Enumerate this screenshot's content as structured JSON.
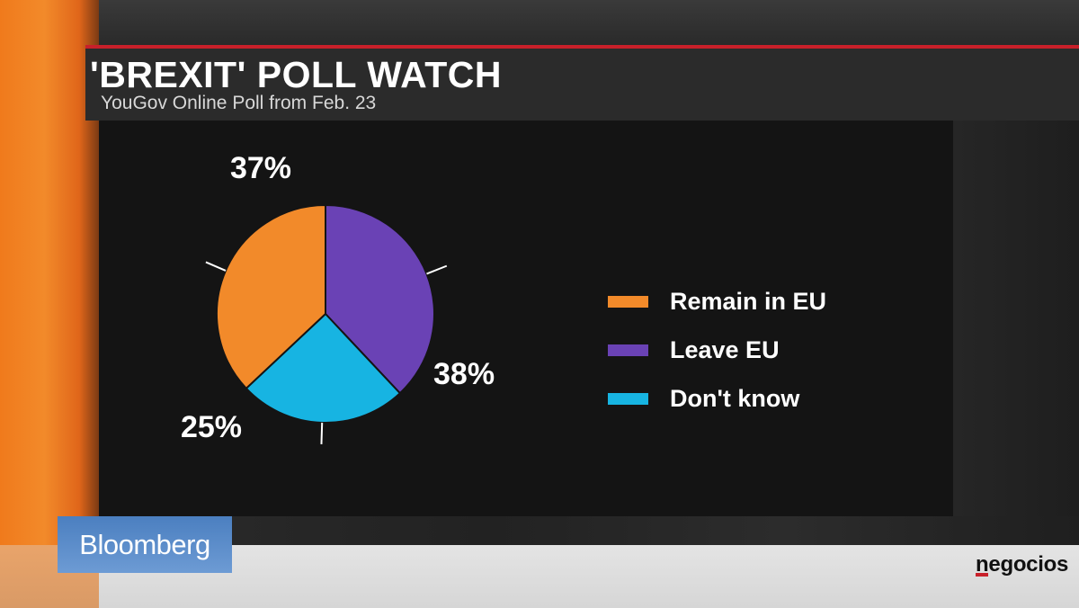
{
  "header": {
    "title": "'BREXIT' POLL WATCH",
    "subtitle": "YouGov Online Poll from Feb. 23"
  },
  "chart_data": {
    "type": "pie",
    "title": "'BREXIT' POLL WATCH",
    "subtitle": "YouGov Online Poll from Feb. 23",
    "slices": [
      {
        "label": "Remain in EU",
        "value": 37,
        "display": "37%",
        "color": "#f28a2a"
      },
      {
        "label": "Leave EU",
        "value": 38,
        "display": "38%",
        "color": "#6a42b5"
      },
      {
        "label": "Don't know",
        "value": 25,
        "display": "25%",
        "color": "#17b4e2"
      }
    ],
    "legend_position": "right"
  },
  "branding": {
    "broadcaster": "Bloomberg",
    "publisher": "negocios"
  },
  "colors": {
    "rule": "#c8202a",
    "panel": "#141414"
  }
}
